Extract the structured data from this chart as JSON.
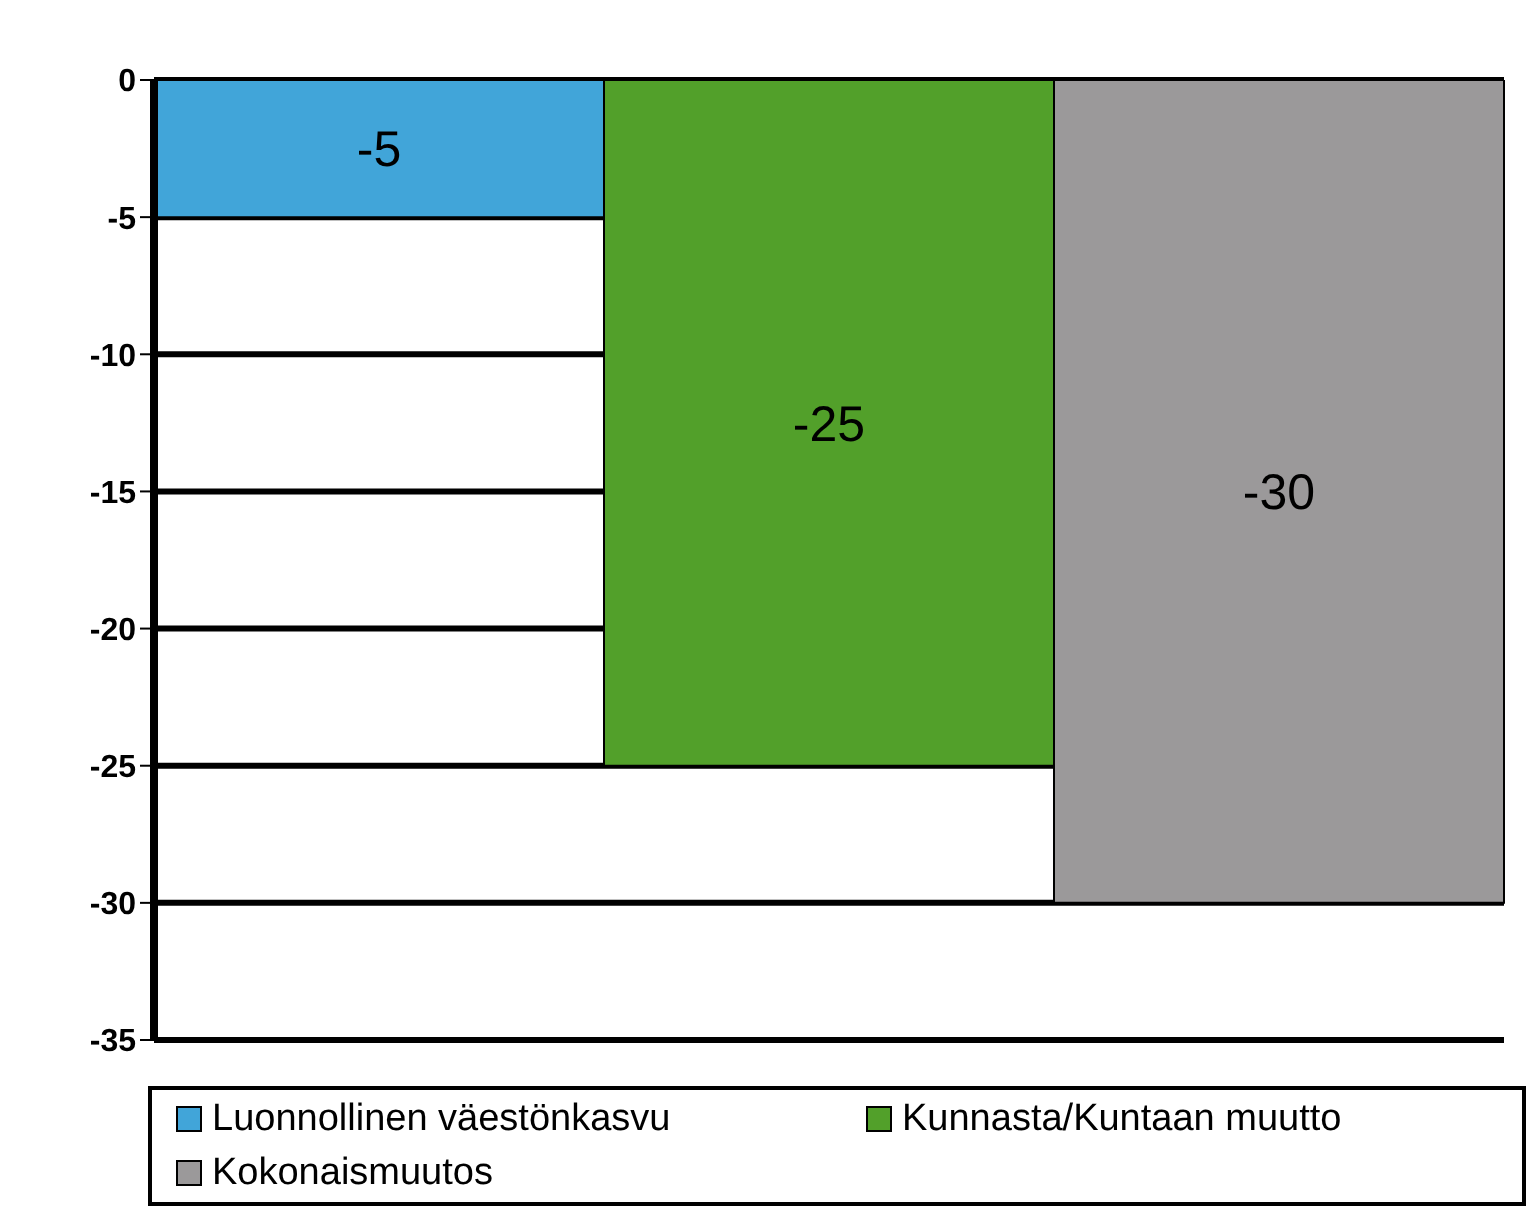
{
  "chart_data": {
    "type": "bar",
    "categories": [
      null
    ],
    "series": [
      {
        "name": "Luonnollinen väestönkasvu",
        "color": "#41a5d9",
        "values": [
          -5
        ]
      },
      {
        "name": "Kunnasta/Kuntaan muutto",
        "color": "#52a02a",
        "values": [
          -25
        ]
      },
      {
        "name": "Kokonaismuutos",
        "color": "#9b999a",
        "values": [
          -30
        ]
      }
    ],
    "ylim": [
      -35,
      0
    ],
    "yticks": [
      0,
      -5,
      -10,
      -15,
      -20,
      -25,
      -30,
      -35
    ],
    "grid": "y",
    "legend": "bottom",
    "data_labels": true
  }
}
